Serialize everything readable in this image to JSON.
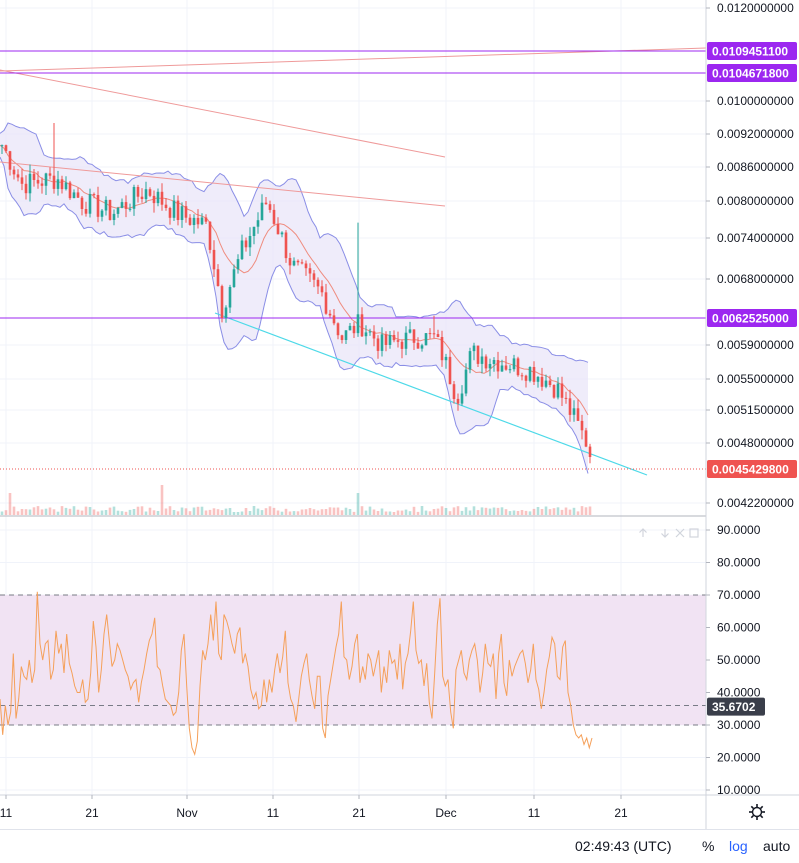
{
  "chart_data": [
    {
      "type": "candlestick",
      "price_axis": {
        "ticks": [
          "0.0120000000",
          "0.0100000000",
          "0.0092000000",
          "0.0086000000",
          "0.0080000000",
          "0.0074000000",
          "0.0068000000",
          "0.0059000000",
          "0.0055000000",
          "0.0051500000",
          "0.0048000000",
          "0.0042200000"
        ]
      },
      "time_axis": {
        "ticks": [
          "11",
          "21",
          "Nov",
          "11",
          "21",
          "Dec",
          "11",
          "21"
        ]
      },
      "horizontal_lines": [
        {
          "label": "0.0109451100",
          "color": "#9c27f0"
        },
        {
          "label": "0.0104671800",
          "color": "#9c27f0"
        },
        {
          "label": "0.0062525000",
          "color": "#9c27f0"
        }
      ],
      "last_price": {
        "label": "0.0045429800",
        "color": "#ef5350"
      },
      "bollinger_bands": true,
      "colors": {
        "up": "#26a69a",
        "down": "#ef5350",
        "band_line": "#8a8ee6",
        "band_fill": "#e9e6f8",
        "basis": "#ef8c7f",
        "trendline_support": "#4dd9e8",
        "trendlines_resistance": "#ef9a9a"
      }
    },
    {
      "type": "line",
      "indicator_value": "35.6702",
      "y_axis": {
        "ticks": [
          "90.0000",
          "80.0000",
          "70.0000",
          "60.0000",
          "50.0000",
          "40.0000",
          "30.0000",
          "20.0000",
          "10.0000"
        ],
        "range": [
          10,
          90
        ]
      },
      "levels": [
        70,
        36,
        30
      ],
      "band_fill": "#f1e3f3",
      "line_color": "#f5a05a",
      "values": [
        38,
        27,
        36,
        30,
        34,
        52,
        32,
        38,
        48,
        45,
        44,
        50,
        43,
        47,
        71,
        55,
        50,
        55,
        56,
        44,
        47,
        59,
        52,
        55,
        46,
        58,
        49,
        46,
        42,
        40,
        40,
        44,
        37,
        38,
        46,
        62,
        54,
        40,
        47,
        58,
        64,
        56,
        48,
        50,
        55,
        53,
        50,
        47,
        45,
        41,
        43,
        44,
        37,
        43,
        47,
        52,
        56,
        58,
        63,
        48,
        47,
        42,
        38,
        37,
        36,
        33,
        34,
        40,
        53,
        58,
        42,
        29,
        23,
        21,
        25,
        42,
        53,
        50,
        55,
        64,
        56,
        68,
        52,
        50,
        64,
        62,
        59,
        55,
        52,
        58,
        60,
        49,
        52,
        48,
        41,
        38,
        40,
        35,
        36,
        44,
        37,
        44,
        40,
        47,
        52,
        46,
        51,
        59,
        43,
        38,
        36,
        31,
        38,
        45,
        49,
        52,
        44,
        39,
        35,
        45,
        45,
        29,
        26,
        39,
        44,
        49,
        54,
        58,
        68,
        51,
        50,
        44,
        48,
        55,
        58,
        43,
        48,
        44,
        52,
        50,
        45,
        49,
        53,
        40,
        48,
        43,
        53,
        49,
        50,
        44,
        55,
        41,
        49,
        52,
        59,
        68,
        53,
        49,
        50,
        42,
        49,
        37,
        32,
        46,
        61,
        69,
        45,
        42,
        44,
        34,
        29,
        47,
        50,
        53,
        46,
        44,
        50,
        53,
        55,
        50,
        40,
        46,
        55,
        49,
        48,
        52,
        38,
        52,
        58,
        43,
        39,
        50,
        45,
        48,
        50,
        52,
        53,
        49,
        43,
        47,
        55,
        44,
        41,
        35,
        40,
        47,
        51,
        57,
        55,
        45,
        44,
        54,
        56,
        40,
        36,
        30,
        27,
        26,
        27,
        24,
        26,
        23,
        26
      ]
    }
  ],
  "footer": {
    "time": "02:49:43 (UTC)",
    "percent": "%",
    "log": "log",
    "auto": "auto"
  },
  "icons": {
    "gear": "gear-icon",
    "toolbar": [
      "arrow-up-icon",
      "arrow-down-icon",
      "close-icon",
      "maximize-icon"
    ]
  }
}
